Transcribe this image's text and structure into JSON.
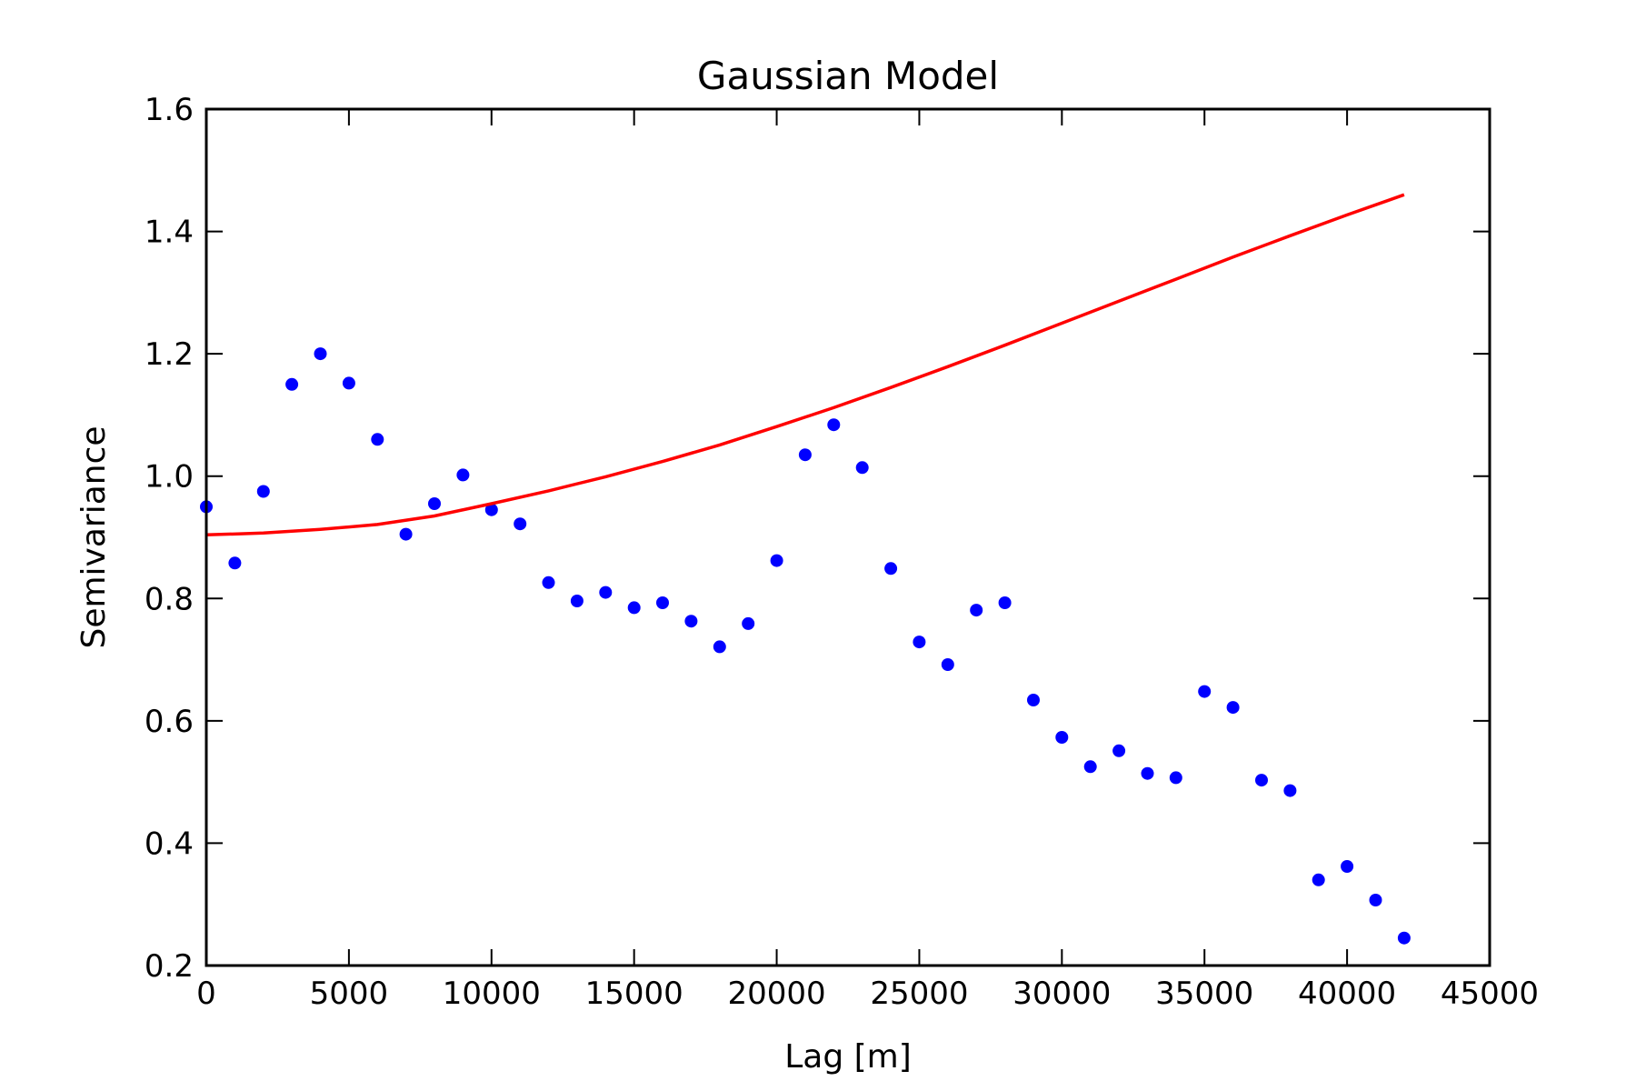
{
  "chart_data": {
    "type": "scatter",
    "title": "Gaussian Model",
    "xlabel": "Lag [m]",
    "ylabel": "Semivariance",
    "xlim": [
      0,
      45000
    ],
    "ylim": [
      0.2,
      1.6
    ],
    "xticks": [
      0,
      5000,
      10000,
      15000,
      20000,
      25000,
      30000,
      35000,
      40000,
      45000
    ],
    "yticks": [
      0.2,
      0.4,
      0.6,
      0.8,
      1.0,
      1.2,
      1.4,
      1.6
    ],
    "xtick_labels": [
      "0",
      "5000",
      "10000",
      "15000",
      "20000",
      "25000",
      "30000",
      "35000",
      "40000",
      "45000"
    ],
    "ytick_labels": [
      "0.2",
      "0.4",
      "0.6",
      "0.8",
      "1.0",
      "1.2",
      "1.4",
      "1.6"
    ],
    "grid": false,
    "legend": "none",
    "series": [
      {
        "kind": "points",
        "color": "#0000ff",
        "x": [
          0,
          1000,
          2000,
          3000,
          4000,
          5000,
          6000,
          7000,
          8000,
          9000,
          10000,
          11000,
          12000,
          13000,
          14000,
          15000,
          16000,
          17000,
          18000,
          19000,
          20000,
          21000,
          22000,
          23000,
          24000,
          25000,
          26000,
          27000,
          28000,
          29000,
          30000,
          31000,
          32000,
          33000,
          34000,
          35000,
          36000,
          37000,
          38000,
          39000,
          40000,
          41000,
          42000
        ],
        "y": [
          0.95,
          0.858,
          0.975,
          1.15,
          1.2,
          1.152,
          1.06,
          0.905,
          0.955,
          1.002,
          0.945,
          0.922,
          0.826,
          0.796,
          0.81,
          0.785,
          0.793,
          0.763,
          0.721,
          0.759,
          0.862,
          1.035,
          1.084,
          1.014,
          0.849,
          0.729,
          0.692,
          0.781,
          0.793,
          0.634,
          0.573,
          0.525,
          0.551,
          0.514,
          0.507,
          0.648,
          0.622,
          0.503,
          0.486,
          0.34,
          0.362,
          0.307,
          0.245
        ]
      },
      {
        "kind": "line",
        "color": "#ff0000",
        "x": [
          0,
          2000,
          4000,
          6000,
          8000,
          10000,
          12000,
          14000,
          16000,
          18000,
          20000,
          22000,
          24000,
          26000,
          28000,
          30000,
          32000,
          34000,
          36000,
          38000,
          40000,
          42000
        ],
        "y": [
          0.904,
          0.907,
          0.913,
          0.921,
          0.935,
          0.955,
          0.976,
          0.999,
          1.024,
          1.051,
          1.081,
          1.112,
          1.145,
          1.179,
          1.214,
          1.25,
          1.286,
          1.322,
          1.358,
          1.393,
          1.427,
          1.46
        ]
      }
    ]
  }
}
